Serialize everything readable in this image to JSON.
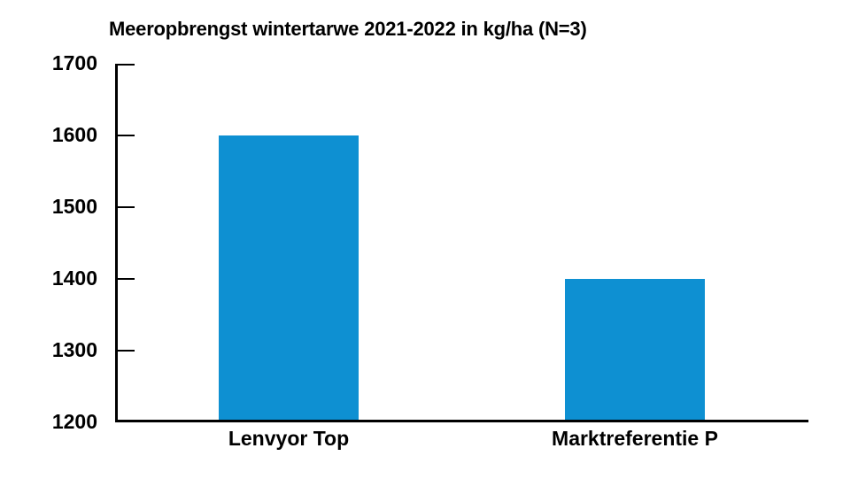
{
  "chart_data": {
    "type": "bar",
    "title": "Meeropbrengst wintertarwe 2021-2022 in kg/ha (N=3)",
    "categories": [
      "Lenvyor Top",
      "Marktreferentie P"
    ],
    "values": [
      1600,
      1400
    ],
    "xlabel": "",
    "ylabel": "",
    "ylim": [
      1200,
      1700
    ],
    "yticks": [
      1200,
      1300,
      1400,
      1500,
      1600,
      1700
    ],
    "grid": false,
    "legend_position": "none",
    "bar_color": "#0e90d2",
    "axis_color": "#000000",
    "background_color": "#ffffff"
  }
}
